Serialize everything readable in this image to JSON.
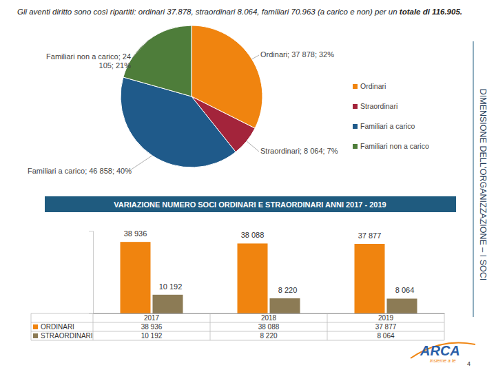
{
  "header": {
    "text": "Gli aventi diritto sono così ripartiti: ordinari 37.878, straordinari 8.064,  familiari 70.963 (a carico e non)  per un ",
    "bold": "totale di 116.905."
  },
  "side_title": "DIMENSIONE DELL’ORGANIZZAZIONE – I SOCI",
  "logo": {
    "name": "ARCA",
    "tagline": "insieme a te"
  },
  "page_number": "4",
  "chart_data": [
    {
      "type": "pie",
      "categories": [
        "Ordinari",
        "Straordinari",
        "Familiari a carico",
        "Familiari non a carico"
      ],
      "values": [
        37878,
        8064,
        46858,
        24105
      ],
      "value_labels": [
        "Ordinari; 37 878; 32%",
        "Straordinari; 8 064; 7%",
        "Familiari a carico; 46 858; 40%",
        "Familiari non a carico; 24 105; 21%"
      ],
      "colors": [
        "#F0840F",
        "#A3243B",
        "#1F5A8A",
        "#4E7D3A"
      ],
      "data_labels": true,
      "legend": "right"
    },
    {
      "type": "bar",
      "title": "VARIAZIONE NUMERO SOCI ORDINARI E STRAORDINARI ANNI 2017 - 2019",
      "categories": [
        "2017",
        "2018",
        "2019"
      ],
      "series": [
        {
          "name": "ORDINARI",
          "color": "#F0840F",
          "values": [
            38936,
            38088,
            37877
          ],
          "value_labels": [
            "38 936",
            "38 088",
            "37 877"
          ]
        },
        {
          "name": "STRAORDINARI",
          "color": "#8C7B55",
          "values": [
            10192,
            8220,
            8064
          ],
          "value_labels": [
            "10 192",
            "8 220",
            "8 064"
          ]
        }
      ],
      "ylim": [
        0,
        45000
      ],
      "yticks": [],
      "tick_labels": "x",
      "data_labels": true,
      "legend": "bottom"
    }
  ]
}
